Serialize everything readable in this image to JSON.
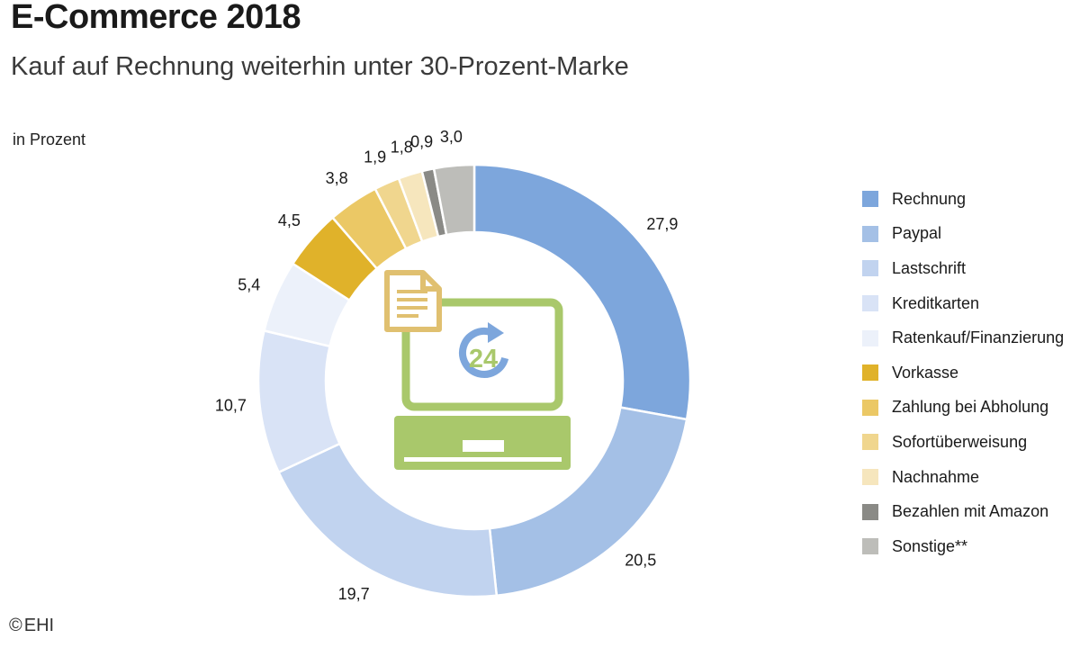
{
  "header": {
    "title": "E-Commerce 2018",
    "subtitle": "Kauf auf Rechnung weiterhin unter 30-Prozent-Marke",
    "unit": "in Prozent"
  },
  "footer": {
    "copyright_symbol": "©",
    "copyright_text": "EHI"
  },
  "center_icon": {
    "name": "laptop-24-invoice-icon",
    "badge_text": "24"
  },
  "chart_data": {
    "type": "pie",
    "donut": true,
    "unit": "in Prozent",
    "legend_position": "right",
    "start_angle_deg": 0,
    "direction": "clockwise",
    "slices": [
      {
        "label": "Rechnung",
        "value": 27.9,
        "display": "27,9",
        "color": "#7da6dc"
      },
      {
        "label": "Paypal",
        "value": 20.5,
        "display": "20,5",
        "color": "#a4c0e6"
      },
      {
        "label": "Lastschrift",
        "value": 19.7,
        "display": "19,7",
        "color": "#c1d3ef"
      },
      {
        "label": "Kreditkarten",
        "value": 10.7,
        "display": "10,7",
        "color": "#d9e3f6"
      },
      {
        "label": "Ratenkauf/Finanzierung",
        "value": 5.4,
        "display": "5,4",
        "color": "#ecf1fa"
      },
      {
        "label": "Vorkasse",
        "value": 4.5,
        "display": "4,5",
        "color": "#e0b22a"
      },
      {
        "label": "Zahlung bei Abholung",
        "value": 3.8,
        "display": "3,8",
        "color": "#ebc865"
      },
      {
        "label": "Sofortüberweisung",
        "value": 1.9,
        "display": "1,9",
        "color": "#f0d68e"
      },
      {
        "label": "Nachnahme",
        "value": 1.8,
        "display": "1,8",
        "color": "#f6e6bd"
      },
      {
        "label": "Bezahlen mit Amazon",
        "value": 0.9,
        "display": "0,9",
        "color": "#8a8a86"
      },
      {
        "label": "Sonstige**",
        "value": 3.0,
        "display": "3,0",
        "color": "#bdbdb9"
      }
    ]
  }
}
